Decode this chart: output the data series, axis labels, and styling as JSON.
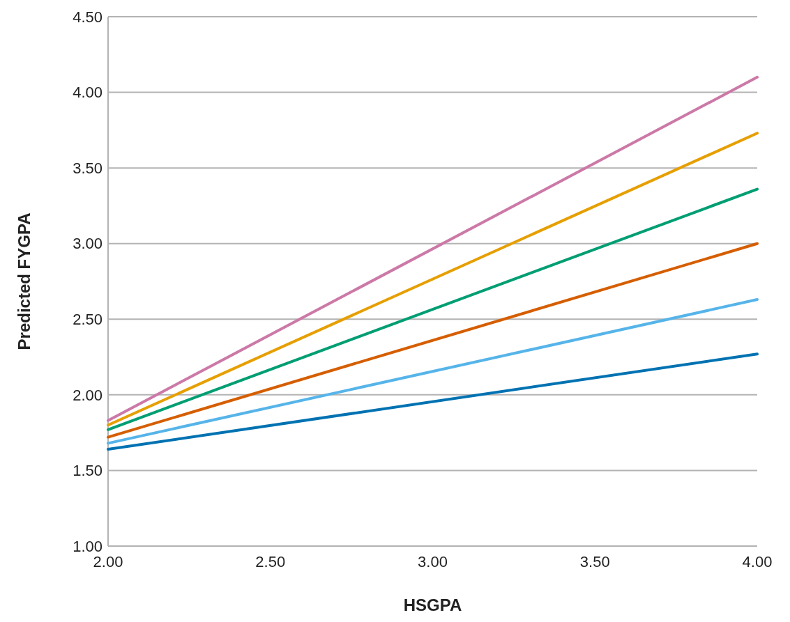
{
  "chart_data": {
    "type": "line",
    "xlabel": "HSGPA",
    "ylabel": "Predicted FYGPA",
    "x": [
      2,
      4
    ],
    "series": [
      {
        "color": "#0072b2",
        "values": [
          1.64,
          2.27
        ]
      },
      {
        "color": "#56b4e9",
        "values": [
          1.68,
          2.63
        ]
      },
      {
        "color": "#d55e00",
        "values": [
          1.72,
          3.0
        ]
      },
      {
        "color": "#009e73",
        "values": [
          1.77,
          3.36
        ]
      },
      {
        "color": "#e69f00",
        "values": [
          1.8,
          3.73
        ]
      },
      {
        "color": "#cc79a7",
        "values": [
          1.83,
          4.1
        ]
      }
    ],
    "xlim": [
      2,
      4
    ],
    "xticks": [
      {
        "value": 2,
        "label": "2.00"
      },
      {
        "value": 2.5,
        "label": "2.50"
      },
      {
        "value": 3,
        "label": "3.00"
      },
      {
        "value": 3.5,
        "label": "3.50"
      },
      {
        "value": 4,
        "label": "4.00"
      }
    ],
    "ylim": [
      1,
      4.5
    ],
    "yticks": [
      {
        "value": 1,
        "label": "1.00"
      },
      {
        "value": 1.5,
        "label": "1.50"
      },
      {
        "value": 2,
        "label": "2.00"
      },
      {
        "value": 2.5,
        "label": "2.50"
      },
      {
        "value": 3,
        "label": "3.00"
      },
      {
        "value": 3.5,
        "label": "3.50"
      },
      {
        "value": 4,
        "label": "4.00"
      },
      {
        "value": 4.5,
        "label": "4.50"
      }
    ],
    "grid": "y",
    "marker": "none",
    "line_style": "solid"
  }
}
